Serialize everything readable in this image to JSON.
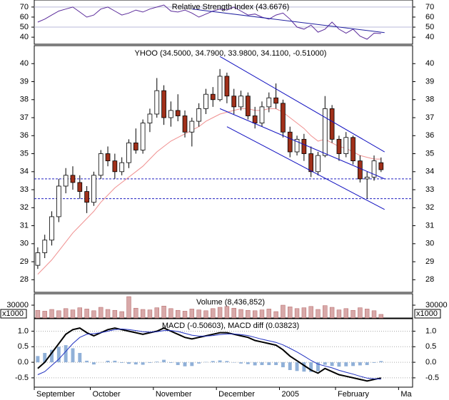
{
  "chart_data": [
    {
      "type": "line",
      "title": "Relative Strength Index (43.6676)",
      "ylim": [
        33,
        77
      ],
      "yticks": [
        70,
        60,
        50,
        40
      ],
      "reference_lines": [
        70,
        50
      ],
      "series": [
        {
          "name": "RSI",
          "color": "#5a2a9a",
          "values": [
            55,
            58,
            62,
            66,
            68,
            70,
            65,
            60,
            62,
            68,
            70,
            66,
            62,
            64,
            67,
            65,
            68,
            70,
            72,
            66,
            65,
            67,
            64,
            60,
            63,
            66,
            68,
            67,
            70,
            66,
            62,
            63,
            60,
            58,
            62,
            64,
            58,
            50,
            48,
            52,
            45,
            48,
            55,
            48,
            44,
            48,
            41,
            38,
            44,
            43.6676
          ]
        }
      ],
      "trendlines": [
        {
          "x": [
            22,
            49.5
          ],
          "y": [
            68,
            44.5
          ],
          "color": "#2020a0"
        }
      ]
    },
    {
      "type": "candlestick",
      "title": "YHOO (34.5000, 34.7900, 33.9800, 34.1100, -0.51000)",
      "ylim": [
        27.3,
        41
      ],
      "yticks": [
        40,
        39,
        38,
        37,
        36,
        35,
        34,
        33,
        32,
        31,
        30,
        29,
        28
      ],
      "up_color": "#ffffff",
      "down_color": "#a0301a",
      "outline_color": "#000000",
      "open": [
        28.8,
        29.5,
        30.2,
        31.5,
        33.2,
        33.8,
        33.4,
        32.9,
        32.3,
        33.8,
        35.0,
        34.6,
        34.0,
        34.5,
        35.6,
        35.2,
        36.7,
        37.2,
        38.5,
        37.0,
        37.4,
        37.1,
        36.2,
        36.8,
        37.5,
        38.3,
        38.0,
        39.3,
        38.2,
        37.6,
        38.2,
        37.1,
        36.7,
        37.6,
        38.1,
        37.8,
        36.2,
        35.1,
        35.8,
        35.0,
        34.0,
        34.9,
        37.5,
        35.8,
        35.0,
        35.9,
        34.6,
        33.6,
        33.7,
        34.5
      ],
      "high": [
        29.8,
        30.5,
        31.8,
        33.6,
        34.2,
        34.3,
        33.8,
        33.2,
        34.0,
        35.2,
        35.4,
        35.0,
        34.8,
        35.8,
        36.4,
        36.9,
        37.5,
        39.2,
        38.8,
        37.9,
        38.3,
        37.4,
        37.0,
        37.8,
        38.6,
        38.7,
        39.7,
        39.5,
        38.6,
        38.5,
        38.4,
        37.6,
        37.9,
        38.4,
        38.9,
        38.0,
        36.5,
        36.0,
        36.1,
        35.4,
        35.1,
        38.2,
        37.7,
        36.0,
        36.2,
        36.0,
        34.9,
        34.0,
        34.9,
        34.79
      ],
      "low": [
        28.6,
        29.2,
        29.9,
        31.2,
        32.8,
        33.0,
        32.5,
        31.7,
        32.1,
        33.6,
        34.3,
        33.6,
        33.8,
        34.2,
        35.0,
        35.0,
        36.2,
        37.0,
        36.6,
        36.5,
        36.8,
        35.9,
        35.4,
        36.5,
        37.2,
        37.6,
        37.9,
        37.8,
        37.2,
        37.4,
        36.9,
        36.4,
        36.5,
        37.3,
        37.5,
        35.9,
        34.8,
        34.9,
        34.6,
        33.7,
        33.8,
        34.8,
        35.6,
        34.6,
        34.8,
        34.4,
        33.4,
        32.5,
        33.5,
        33.98
      ],
      "close": [
        29.5,
        30.2,
        31.5,
        33.2,
        33.8,
        33.4,
        32.9,
        32.3,
        33.8,
        35.0,
        34.6,
        34.0,
        34.5,
        35.6,
        35.2,
        36.7,
        37.2,
        38.5,
        37.0,
        37.4,
        37.1,
        36.2,
        36.8,
        37.5,
        38.3,
        38.0,
        39.3,
        38.2,
        37.6,
        38.2,
        37.1,
        36.7,
        37.6,
        38.1,
        37.8,
        36.2,
        35.1,
        35.8,
        35.0,
        34.0,
        34.9,
        37.5,
        35.8,
        35.0,
        35.9,
        34.6,
        33.6,
        33.7,
        34.6,
        34.11
      ],
      "moving_average": {
        "color": "#f09090",
        "values": [
          28.3,
          28.7,
          29.1,
          29.6,
          30.1,
          30.6,
          31.0,
          31.4,
          31.8,
          32.3,
          32.7,
          33.1,
          33.4,
          33.7,
          34.0,
          34.3,
          34.7,
          35.1,
          35.4,
          35.7,
          35.9,
          36.1,
          36.3,
          36.5,
          36.8,
          37.0,
          37.2,
          37.3,
          37.4,
          37.5,
          37.5,
          37.4,
          37.4,
          37.5,
          37.5,
          37.3,
          37.0,
          36.7,
          36.4,
          36.0,
          35.7,
          35.8,
          35.6,
          35.4,
          35.3,
          35.1,
          34.9,
          34.8,
          34.7,
          34.7
        ]
      },
      "hlines": [
        33.6,
        32.5
      ],
      "hline_color": "#2020c0",
      "trendlines": [
        {
          "x": [
            26,
            49.5
          ],
          "y": [
            40.4,
            35.1
          ],
          "color": "#1010c0"
        },
        {
          "x": [
            26,
            49.5
          ],
          "y": [
            37.5,
            33.6
          ],
          "color": "#1010c0"
        },
        {
          "x": [
            27,
            49.5
          ],
          "y": [
            36.5,
            31.9
          ],
          "color": "#1010c0"
        }
      ]
    },
    {
      "type": "bar",
      "title": "Volume (8,436,852)",
      "unit_label": "x1000",
      "ylim": [
        0,
        56700
      ],
      "yticks": [
        30000
      ],
      "color": "#d8a8a8",
      "outline_color": "#b06060",
      "values": [
        18000,
        16000,
        20000,
        17000,
        22000,
        19000,
        24000,
        21000,
        17000,
        25000,
        20000,
        18000,
        15000,
        50000,
        23000,
        20000,
        19000,
        24000,
        28000,
        22000,
        18000,
        16000,
        21000,
        19000,
        17000,
        22000,
        25000,
        27000,
        23000,
        20000,
        18000,
        17000,
        19000,
        21000,
        15000,
        30000,
        26000,
        22000,
        24000,
        27000,
        20000,
        29000,
        25000,
        19000,
        22000,
        18000,
        24000,
        21000,
        17000,
        8436.852
      ]
    },
    {
      "type": "line",
      "title": "MACD (-0.50603), MACD diff (0.03823)",
      "ylim": [
        -0.8,
        1.4
      ],
      "yticks": [
        {
          "value": 1,
          "label": "1.0"
        },
        0.5,
        {
          "value": 0,
          "label": "0.0"
        },
        -0.5
      ],
      "grid": true,
      "categories": [
        "September",
        null,
        null,
        null,
        null,
        null,
        null,
        null,
        "October",
        null,
        null,
        null,
        null,
        null,
        null,
        null,
        null,
        "November",
        null,
        null,
        null,
        null,
        null,
        null,
        null,
        null,
        "December",
        null,
        null,
        null,
        null,
        null,
        null,
        null,
        null,
        "2005",
        null,
        null,
        null,
        null,
        null,
        null,
        null,
        "February",
        null,
        null,
        null,
        null,
        null,
        null,
        null,
        null,
        "Ma",
        null
      ],
      "series": [
        {
          "name": "MACD diff",
          "type": "bar",
          "color": "#90b0d8",
          "values": [
            0.2,
            0.3,
            0.4,
            0.5,
            0.55,
            0.45,
            0.3,
            0.05,
            -0.07,
            0,
            0.05,
            0.05,
            -0.02,
            -0.05,
            -0.07,
            -0.08,
            -0.02,
            0.02,
            0.08,
            -0.02,
            -0.09,
            -0.13,
            -0.12,
            -0.04,
            0.01,
            0.04,
            0.06,
            0.04,
            -0.01,
            -0.04,
            -0.06,
            -0.1,
            -0.09,
            -0.09,
            -0.09,
            -0.16,
            -0.25,
            -0.28,
            -0.3,
            -0.31,
            -0.29,
            -0.08,
            -0.12,
            -0.14,
            -0.13,
            -0.12,
            -0.1,
            -0.09,
            -0.02,
            0.03823,
            null,
            null,
            null,
            null
          ]
        },
        {
          "name": "MACD",
          "type": "line",
          "color": "#000000",
          "width": 2,
          "values": [
            -0.2,
            0.0,
            0.3,
            0.6,
            0.9,
            1.05,
            1.1,
            0.95,
            0.85,
            0.95,
            1.05,
            1.1,
            1.05,
            1.0,
            0.95,
            0.9,
            0.95,
            1.0,
            1.1,
            1.0,
            0.9,
            0.8,
            0.75,
            0.8,
            0.85,
            0.9,
            0.95,
            0.95,
            0.9,
            0.85,
            0.8,
            0.7,
            0.65,
            0.6,
            0.55,
            0.4,
            0.2,
            0.05,
            -0.1,
            -0.25,
            -0.35,
            -0.2,
            -0.3,
            -0.4,
            -0.45,
            -0.5,
            -0.55,
            -0.6,
            -0.55,
            -0.50603,
            null,
            null,
            null,
            null
          ]
        },
        {
          "name": "Signal",
          "type": "line",
          "color": "#2030c0",
          "width": 1,
          "values": [
            -0.4,
            -0.3,
            -0.1,
            0.1,
            0.35,
            0.6,
            0.8,
            0.9,
            0.92,
            0.95,
            1.0,
            1.05,
            1.07,
            1.05,
            1.02,
            0.98,
            0.97,
            0.98,
            1.02,
            1.02,
            0.99,
            0.93,
            0.87,
            0.84,
            0.84,
            0.86,
            0.89,
            0.91,
            0.91,
            0.89,
            0.86,
            0.8,
            0.74,
            0.69,
            0.64,
            0.56,
            0.45,
            0.33,
            0.2,
            0.06,
            -0.06,
            -0.12,
            -0.18,
            -0.26,
            -0.32,
            -0.38,
            -0.45,
            -0.51,
            -0.53,
            -0.54426,
            null,
            null,
            null,
            null
          ]
        }
      ]
    }
  ]
}
